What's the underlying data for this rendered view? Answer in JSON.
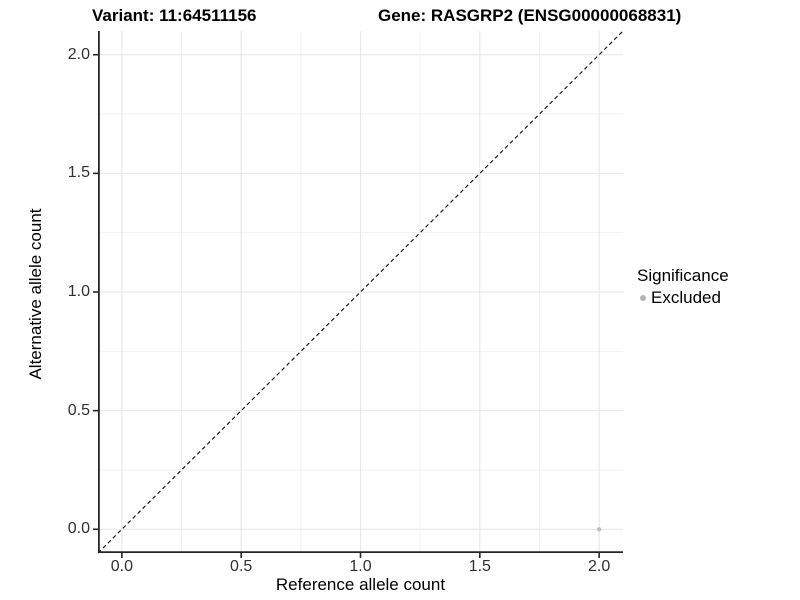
{
  "titles": {
    "variant": "Variant: 11:64511156",
    "gene": "Gene: RASGRP2 (ENSG00000068831)"
  },
  "chart_data": {
    "type": "scatter",
    "title_left": "Variant: 11:64511156",
    "title_right": "Gene: RASGRP2 (ENSG00000068831)",
    "xlabel": "Reference allele count",
    "ylabel": "Alternative allele count",
    "xlim": [
      -0.1,
      2.1
    ],
    "ylim": [
      -0.1,
      2.1
    ],
    "grid": true,
    "x_ticks": [
      {
        "value": 0.0,
        "label": "0.0"
      },
      {
        "value": 0.5,
        "label": "0.5"
      },
      {
        "value": 1.0,
        "label": "1.0"
      },
      {
        "value": 1.5,
        "label": "1.5"
      },
      {
        "value": 2.0,
        "label": "2.0"
      }
    ],
    "y_ticks": [
      {
        "value": 0.0,
        "label": "0.0"
      },
      {
        "value": 0.5,
        "label": "0.5"
      },
      {
        "value": 1.0,
        "label": "1.0"
      },
      {
        "value": 1.5,
        "label": "1.5"
      },
      {
        "value": 2.0,
        "label": "2.0"
      }
    ],
    "x_minor_ticks": [
      0.25,
      0.75,
      1.25,
      1.75
    ],
    "y_minor_ticks": [
      0.25,
      0.75,
      1.25,
      1.75
    ],
    "series": [
      {
        "name": "Excluded",
        "color": "#bdbdbd",
        "points": [
          {
            "x": 2.0,
            "y": 0.0
          }
        ]
      }
    ],
    "reference_line": {
      "type": "identity",
      "slope": 1,
      "intercept": 0,
      "style": "dashed",
      "color": "#1a1a1a"
    },
    "legend": {
      "title": "Significance",
      "position": "right",
      "entries": [
        {
          "label": "Excluded",
          "color": "#b3b3b3"
        }
      ]
    },
    "colors": {
      "background": "#ffffff",
      "grid_major": "#e7e7e7",
      "grid_minor": "#f2f2f2",
      "axis_line": "#262626",
      "tick_mark": "#262626",
      "tick_text": "#303030"
    }
  }
}
